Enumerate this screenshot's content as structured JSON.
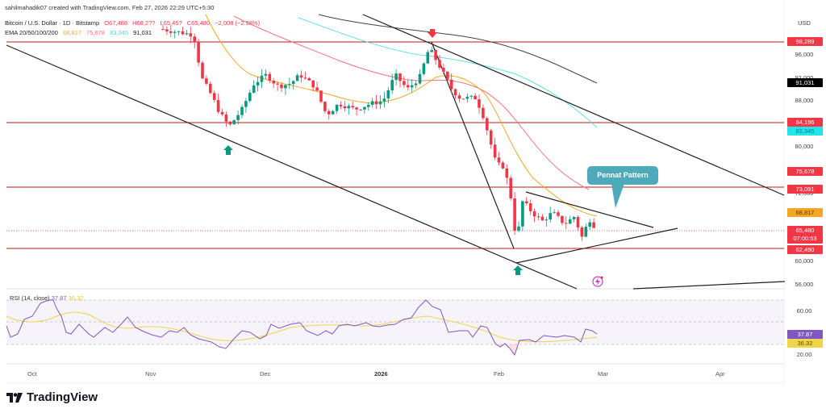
{
  "header": {
    "credit": "sahilmahadik07 created with TradingView.com, Feb 27, 2026 22:29 UTC+5:30",
    "symbol": "Bitcoin / U.S. Dollar · 1D · Bitstamp",
    "open": "O67,488",
    "high": "H68,2??",
    "low": "L65,45?",
    "close": "C65,480",
    "change": "−2,008 (−2.98%)",
    "ema_label": "EMA 20/50/100/200",
    "ema20": "68,817",
    "ema50": "75,678",
    "ema100": "83,345",
    "ema200": "91,031"
  },
  "price_axis": {
    "currency": "USD",
    "ticks": [
      "96,000",
      "92,000",
      "88,000",
      "80,000",
      "72,000",
      "68,000",
      "60,000",
      "56,000"
    ],
    "tags": {
      "r1": "98,289",
      "ema200": "91,031",
      "r2": "84,196",
      "ema100": "83,345",
      "ema50": "75,678",
      "r3": "73,091",
      "ema20": "68,817",
      "last_price": "65,480",
      "countdown": "07:00:53",
      "s1": "62,490"
    }
  },
  "rsi": {
    "label": "RSI (14, close)",
    "value": "37.87",
    "ma_value": "36.32",
    "ticks": [
      "60.00",
      "20.00"
    ]
  },
  "time_axis": [
    "Oct",
    "Nov",
    "Dec",
    "2026",
    "Feb",
    "Mar",
    "Apr"
  ],
  "annotation": {
    "callout": "Pennat Pattern"
  },
  "brand": {
    "name": "TradingView"
  },
  "colors": {
    "up": "#089981",
    "down": "#f23645",
    "ema20": "#f5a623",
    "ema50": "#f27480",
    "ema100": "#5ee0e6",
    "ema200": "#131722",
    "rsi": "#7e57c2",
    "rsi_ma": "#f0d54a",
    "level": "#c2181f",
    "callout": "#4eaab8"
  },
  "chart_data": {
    "type": "candlestick",
    "title": "Bitcoin / U.S. Dollar · 1D · Bitstamp",
    "xlabel": "",
    "ylabel": "USD",
    "ylim": [
      55500,
      102000
    ],
    "x_ticks": [
      "Oct",
      "Nov",
      "Dec",
      "2026",
      "Feb",
      "Mar",
      "Apr"
    ],
    "horizontal_levels": [
      98289,
      84196,
      73091,
      62490
    ],
    "last_price": 65480,
    "ema": {
      "20": 68817,
      "50": 75678,
      "100": 83345,
      "200": 91031
    },
    "approx_path": [
      {
        "t": "early Nov",
        "price": 101000
      },
      {
        "t": "mid Nov",
        "price": 90000
      },
      {
        "t": "Nov 21",
        "price": 84500,
        "low": 80500
      },
      {
        "t": "early Dec",
        "price": 92500
      },
      {
        "t": "mid Dec",
        "price": 85500
      },
      {
        "t": "late Dec",
        "price": 87500
      },
      {
        "t": "early Jan",
        "price": 93500
      },
      {
        "t": "Jan 14",
        "price": 97000,
        "high": 97900
      },
      {
        "t": "late Jan",
        "price": 88000
      },
      {
        "t": "Feb 5",
        "price": 63000,
        "low": 60000
      },
      {
        "t": "Feb 6",
        "price": 70500
      },
      {
        "t": "mid Feb",
        "price": 67500
      },
      {
        "t": "Feb 24",
        "price": 63500
      },
      {
        "t": "Feb 26",
        "price": 67500
      },
      {
        "t": "Feb 27",
        "price": 65480
      }
    ],
    "patterns": [
      "descending channel",
      "bearish pennant (Pennat Pattern)"
    ],
    "rsi": {
      "period": 14,
      "value": 37.87,
      "ma": 36.32,
      "levels": [
        70,
        50,
        30
      ]
    },
    "grid": true,
    "legend_position": "top-left"
  }
}
